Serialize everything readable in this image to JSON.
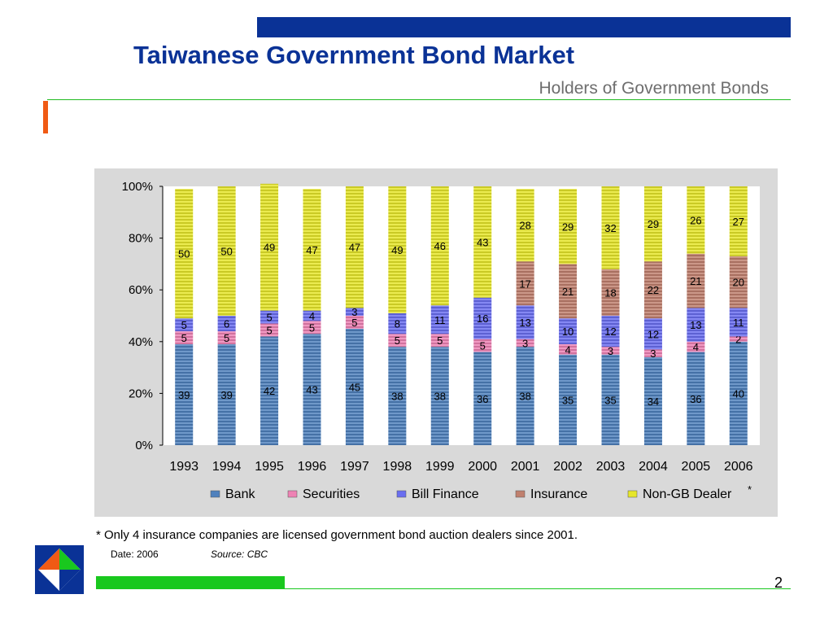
{
  "header": {
    "title": "Taiwanese Government Bond Market",
    "subtitle": "Holders of Government Bonds"
  },
  "colors": {
    "brand_blue": "#0a3296",
    "accent_orange": "#f05a14",
    "accent_green": "#19c81e",
    "panel_gray": "#d9d9d9"
  },
  "chart_data": {
    "type": "bar",
    "stacked": "percent",
    "title": "",
    "xlabel": "",
    "ylabel": "",
    "categories": [
      "1993",
      "1994",
      "1995",
      "1996",
      "1997",
      "1998",
      "1999",
      "2000",
      "2001",
      "2002",
      "2003",
      "2004",
      "2005",
      "2006"
    ],
    "series": [
      {
        "name": "Bank",
        "color": "#4f81bd",
        "values": [
          39,
          39,
          42,
          43,
          45,
          38,
          38,
          36,
          38,
          35,
          35,
          34,
          36,
          40
        ]
      },
      {
        "name": "Securities",
        "color": "#ee82b4",
        "values": [
          5,
          5,
          5,
          5,
          5,
          5,
          5,
          5,
          3,
          4,
          3,
          3,
          4,
          2
        ]
      },
      {
        "name": "Bill Finance",
        "color": "#6a6ef0",
        "values": [
          5,
          6,
          5,
          4,
          3,
          8,
          11,
          16,
          13,
          10,
          12,
          12,
          13,
          11
        ]
      },
      {
        "name": "Insurance",
        "color": "#c0806e",
        "values": [
          0,
          0,
          0,
          0,
          0,
          0,
          0,
          0,
          17,
          21,
          18,
          22,
          21,
          20
        ]
      },
      {
        "name": "Non-GB Dealer",
        "color": "#e6e62a",
        "values": [
          50,
          50,
          49,
          47,
          47,
          49,
          46,
          43,
          28,
          29,
          32,
          29,
          26,
          27
        ]
      }
    ],
    "legend_suffix": "*",
    "ylim": [
      0,
      100
    ],
    "yticks": [
      "0%",
      "20%",
      "40%",
      "60%",
      "80%",
      "100%"
    ],
    "legend_position": "bottom",
    "grid": false
  },
  "footer": {
    "footnote": "* Only 4 insurance companies are licensed government bond auction dealers since 2001.",
    "date": "Date: 2006",
    "source": "Source: CBC",
    "page_number": "2"
  }
}
